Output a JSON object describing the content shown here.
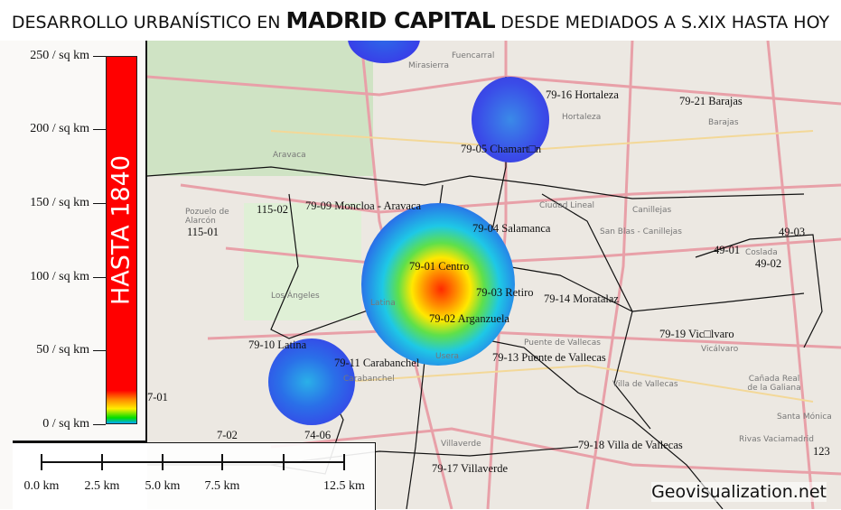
{
  "title": {
    "prefix": "DESARROLLO URBANÍSTICO EN",
    "emphasis": "MADRID CAPITAL",
    "suffix": "DESDE MEDIADOS A S.XIX HASTA HOY"
  },
  "legend": {
    "period": "HASTA 1840",
    "ticks": [
      "250 / sq km",
      "200 / sq km",
      "150 / sq km",
      "100 / sq km",
      "50 / sq km",
      "0 / sq km"
    ],
    "colors": [
      "#ff0000",
      "#ff8800",
      "#ffee00",
      "#00dd00",
      "#00aaff"
    ]
  },
  "districts": [
    "79-16 Hortaleza",
    "79-21 Barajas",
    "79-05 Chamart□n",
    "79-09 Moncloa - Aravaca",
    "115-02",
    "115-01",
    "79-04 Salamanca",
    "79-01 Centro",
    "79-03 Retiro",
    "79-14 Moratalaz",
    "79-02 Arganzuela",
    "79-19 Vic□lvaro",
    "79-10 Latina",
    "79-11 Carabanchel",
    "79-13 Puente de Vallecas",
    "79-18 Villa de Vallecas",
    "79-17 Villaverde",
    "74-06",
    "7-02",
    "49-01",
    "49-02",
    "49-03",
    "7-01",
    "123"
  ],
  "places": [
    "Fuencarral",
    "Mirasierra",
    "Aravaca",
    "Hortaleza",
    "Barajas",
    "Canillejas",
    "San Blas - Canillejas",
    "Ciudad Lineal",
    "Vicálvaro",
    "Villa de Vallecas",
    "Villaverde",
    "Usera",
    "Los Ángeles",
    "Pozuelo de Alarcón",
    "Cañada Real de la Galiana",
    "Santa Mónica",
    "Rivas Vaciamadrid",
    "Coslada",
    "Latina",
    "Carabanchel",
    "Puente de Vallecas"
  ],
  "scale_bar": {
    "labels": [
      "0.0 km",
      "2.5 km",
      "5.0 km",
      "7.5 km",
      "12.5 km"
    ]
  },
  "credit": "Geovisualization.net"
}
